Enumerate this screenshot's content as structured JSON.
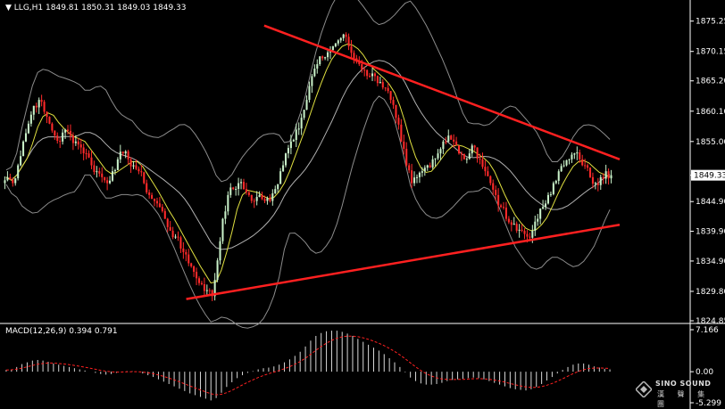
{
  "header": {
    "symbol": "LLG,H1",
    "ohlc": "1849.81 1850.31 1849.03 1849.33",
    "macd_label": "MACD(12,26,9) 0.394 0.791"
  },
  "logo": {
    "brand": "SINO SOUND",
    "sub": "漢 聲 集 團"
  },
  "colors": {
    "background": "#000000",
    "bull": "#c8f0c8",
    "bear": "#ff2a2a",
    "bands": "#8c8c8c",
    "ma": "#e0e040",
    "trendline": "#ff2020",
    "macd_hist": "#d8d8d8",
    "macd_signal": "#ff2020",
    "price_tag_bg": "#ffffff",
    "price_tag_fg": "#000000"
  },
  "chart_data": [
    {
      "type": "candlestick",
      "symbol": "LLG",
      "timeframe": "H1",
      "y_ticks": [
        "1875.25",
        "1870.15",
        "1865.20",
        "1860.10",
        "1855.00",
        "1849.33",
        "1844.90",
        "1839.90",
        "1834.90",
        "1829.80",
        "1824.85"
      ],
      "ylim": [
        1824.85,
        1877.0
      ],
      "current_price": "1849.33",
      "overlays": [
        "Bollinger Bands",
        "Moving Average"
      ],
      "trendlines": [
        {
          "name": "upper",
          "from": {
            "index": 0.0,
            "price": 1874.5
          },
          "to": {
            "index": 1.0,
            "price": 1852.0
          },
          "start_fraction": 0.428
        },
        {
          "name": "lower",
          "from": {
            "index": 0.0,
            "price": 1828.5
          },
          "to": {
            "index": 1.0,
            "price": 1841.0
          },
          "start_fraction": 0.3
        }
      ],
      "closes": [
        1849,
        1848,
        1851,
        1855,
        1858,
        1861,
        1862,
        1860,
        1858,
        1856,
        1855,
        1857,
        1856,
        1855,
        1854,
        1853,
        1851,
        1850,
        1849,
        1848,
        1850,
        1852,
        1853,
        1852,
        1851,
        1850,
        1848,
        1846,
        1845,
        1844,
        1842,
        1840,
        1839,
        1837,
        1836,
        1834,
        1832,
        1831,
        1830,
        1829,
        1835,
        1842,
        1846,
        1847,
        1848,
        1847,
        1846,
        1845,
        1846,
        1845,
        1845,
        1847,
        1850,
        1853,
        1855,
        1857,
        1859,
        1862,
        1866,
        1868,
        1869,
        1870,
        1871,
        1872,
        1873,
        1871,
        1869,
        1868,
        1867,
        1866,
        1866,
        1865,
        1864,
        1862,
        1859,
        1855,
        1851,
        1848,
        1849,
        1850,
        1851,
        1852,
        1853,
        1855,
        1856,
        1855,
        1853,
        1852,
        1853,
        1854,
        1852,
        1850,
        1848,
        1846,
        1844,
        1842,
        1841,
        1840,
        1840,
        1839,
        1840,
        1842,
        1844,
        1846,
        1848,
        1850,
        1851,
        1852,
        1853,
        1852,
        1851,
        1849,
        1848,
        1849,
        1850,
        1849.33
      ]
    },
    {
      "type": "bar",
      "title": "MACD(12,26,9)",
      "values_text": "0.394 0.791",
      "y_ticks": [
        "7.166",
        "0.00",
        "-5.299"
      ],
      "ylim": [
        -5.299,
        7.166
      ],
      "histogram": [
        0.3,
        0.4,
        0.8,
        1.3,
        1.6,
        1.9,
        2.0,
        1.9,
        1.7,
        1.4,
        1.2,
        1.0,
        0.8,
        0.6,
        0.4,
        0.2,
        0.0,
        -0.2,
        -0.4,
        -0.5,
        -0.4,
        -0.2,
        0.0,
        0.1,
        0.1,
        0.0,
        -0.3,
        -0.6,
        -0.9,
        -1.3,
        -1.7,
        -2.1,
        -2.5,
        -2.9,
        -3.3,
        -3.7,
        -4.0,
        -4.3,
        -4.6,
        -4.9,
        -4.5,
        -3.6,
        -2.6,
        -1.8,
        -1.1,
        -0.6,
        -0.2,
        0.1,
        0.4,
        0.6,
        0.7,
        0.9,
        1.2,
        1.6,
        2.1,
        2.7,
        3.4,
        4.3,
        5.3,
        6.1,
        6.6,
        6.9,
        7.0,
        7.0,
        6.8,
        6.5,
        6.1,
        5.6,
        5.1,
        4.6,
        4.1,
        3.6,
        3.0,
        2.3,
        1.6,
        0.8,
        -0.1,
        -1.0,
        -1.6,
        -2.0,
        -2.2,
        -2.2,
        -2.1,
        -1.9,
        -1.6,
        -1.4,
        -1.3,
        -1.2,
        -1.1,
        -1.0,
        -1.1,
        -1.3,
        -1.6,
        -1.9,
        -2.2,
        -2.5,
        -2.8,
        -3.0,
        -3.1,
        -3.2,
        -3.0,
        -2.6,
        -2.1,
        -1.5,
        -0.9,
        -0.3,
        0.3,
        0.8,
        1.2,
        1.4,
        1.4,
        1.2,
        0.9,
        0.7,
        0.5,
        0.4
      ]
    }
  ]
}
